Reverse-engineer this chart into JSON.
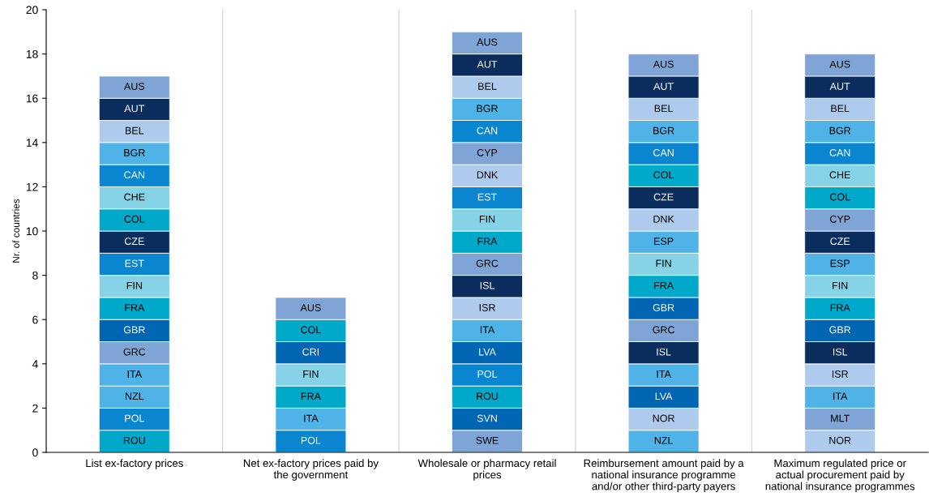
{
  "chart_data": {
    "type": "bar",
    "stacked": true,
    "ylabel": "Nr. of countries",
    "categories": [
      "List ex-factory prices",
      "Net ex-factory prices paid by the government",
      "Wholesale or pharmacy retail prices",
      "Reimbursement amount paid by a national insurance programme and/or other third-party payers",
      "Maximum regulated price or actual procurement paid by national insurance programmes"
    ],
    "ylim": [
      0,
      20
    ],
    "yticks": [
      0,
      2,
      4,
      6,
      8,
      10,
      12,
      14,
      16,
      18,
      20
    ],
    "grid": false,
    "series": [
      {
        "values": [
          1,
          1,
          1,
          1,
          1
        ],
        "value_labels": [
          "ROU",
          "POL",
          "SWE",
          "NZL",
          "NOR"
        ],
        "colors": [
          "#00a9c9",
          "#0a86d0",
          "#7fa5d6",
          "#4fb3e8",
          "#aecbee"
        ]
      },
      {
        "values": [
          1,
          1,
          1,
          1,
          1
        ],
        "value_labels": [
          "POL",
          "ITA",
          "SVN",
          "NOR",
          "MLT"
        ],
        "colors": [
          "#0a86d0",
          "#4fb3e8",
          "#0066b3",
          "#aecbee",
          "#7fa5d6"
        ]
      },
      {
        "values": [
          1,
          1,
          1,
          1,
          1
        ],
        "value_labels": [
          "NZL",
          "FRA",
          "ROU",
          "LVA",
          "ITA"
        ],
        "colors": [
          "#4fb3e8",
          "#00a9c9",
          "#00a9c9",
          "#0066b3",
          "#4fb3e8"
        ]
      },
      {
        "values": [
          1,
          1,
          1,
          1,
          1
        ],
        "value_labels": [
          "ITA",
          "FIN",
          "POL",
          "ITA",
          "ISR"
        ],
        "colors": [
          "#4fb3e8",
          "#86d2e6",
          "#0a86d0",
          "#4fb3e8",
          "#aecbee"
        ]
      },
      {
        "values": [
          1,
          1,
          1,
          1,
          1
        ],
        "value_labels": [
          "GRC",
          "CRI",
          "LVA",
          "ISL",
          "ISL"
        ],
        "colors": [
          "#7fa5d6",
          "#0066b3",
          "#0066b3",
          "#0b2d5e",
          "#0b2d5e"
        ]
      },
      {
        "values": [
          1,
          1,
          1,
          1,
          1
        ],
        "value_labels": [
          "GBR",
          "COL",
          "ITA",
          "GRC",
          "GBR"
        ],
        "colors": [
          "#0066b3",
          "#00a9c9",
          "#4fb3e8",
          "#7fa5d6",
          "#0066b3"
        ]
      },
      {
        "values": [
          1,
          1,
          1,
          1,
          1
        ],
        "value_labels": [
          "FRA",
          "AUS",
          "ISR",
          "GBR",
          "FRA"
        ],
        "colors": [
          "#00a9c9",
          "#7fa5d6",
          "#aecbee",
          "#0066b3",
          "#00a9c9"
        ]
      },
      {
        "values": [
          1,
          null,
          1,
          1,
          1
        ],
        "value_labels": [
          "FIN",
          null,
          "ISL",
          "FRA",
          "FIN"
        ],
        "colors": [
          "#86d2e6",
          null,
          "#0b2d5e",
          "#00a9c9",
          "#86d2e6"
        ]
      },
      {
        "values": [
          1,
          null,
          1,
          1,
          1
        ],
        "value_labels": [
          "EST",
          null,
          "GRC",
          "FIN",
          "ESP"
        ],
        "colors": [
          "#0a86d0",
          null,
          "#7fa5d6",
          "#86d2e6",
          "#4fb3e8"
        ]
      },
      {
        "values": [
          1,
          null,
          1,
          1,
          1
        ],
        "value_labels": [
          "CZE",
          null,
          "FRA",
          "ESP",
          "CZE"
        ],
        "colors": [
          "#0b2d5e",
          null,
          "#00a9c9",
          "#4fb3e8",
          "#0b2d5e"
        ]
      },
      {
        "values": [
          1,
          null,
          1,
          1,
          1
        ],
        "value_labels": [
          "COL",
          null,
          "FIN",
          "DNK",
          "CYP"
        ],
        "colors": [
          "#00a9c9",
          null,
          "#86d2e6",
          "#aecbee",
          "#7fa5d6"
        ]
      },
      {
        "values": [
          1,
          null,
          1,
          1,
          1
        ],
        "value_labels": [
          "CHE",
          null,
          "EST",
          "CZE",
          "COL"
        ],
        "colors": [
          "#86d2e6",
          null,
          "#0a86d0",
          "#0b2d5e",
          "#00a9c9"
        ]
      },
      {
        "values": [
          1,
          null,
          1,
          1,
          1
        ],
        "value_labels": [
          "CAN",
          null,
          "DNK",
          "COL",
          "CHE"
        ],
        "colors": [
          "#0a86d0",
          null,
          "#aecbee",
          "#00a9c9",
          "#86d2e6"
        ]
      },
      {
        "values": [
          1,
          null,
          1,
          1,
          1
        ],
        "value_labels": [
          "BGR",
          null,
          "CYP",
          "CAN",
          "CAN"
        ],
        "colors": [
          "#4fb3e8",
          null,
          "#7fa5d6",
          "#0a86d0",
          "#0a86d0"
        ]
      },
      {
        "values": [
          1,
          null,
          1,
          1,
          1
        ],
        "value_labels": [
          "BEL",
          null,
          "CAN",
          "BGR",
          "BGR"
        ],
        "colors": [
          "#aecbee",
          null,
          "#0a86d0",
          "#4fb3e8",
          "#4fb3e8"
        ]
      },
      {
        "values": [
          1,
          null,
          1,
          1,
          1
        ],
        "value_labels": [
          "AUT",
          null,
          "BGR",
          "BEL",
          "BEL"
        ],
        "colors": [
          "#0b2d5e",
          null,
          "#4fb3e8",
          "#aecbee",
          "#aecbee"
        ]
      },
      {
        "values": [
          1,
          null,
          1,
          1,
          1
        ],
        "value_labels": [
          "AUS",
          null,
          "BEL",
          "AUT",
          "AUT"
        ],
        "colors": [
          "#7fa5d6",
          null,
          "#aecbee",
          "#0b2d5e",
          "#0b2d5e"
        ]
      },
      {
        "values": [
          null,
          null,
          1,
          1,
          1
        ],
        "value_labels": [
          null,
          null,
          "AUT",
          "AUS",
          "AUS"
        ],
        "colors": [
          null,
          null,
          "#0b2d5e",
          "#7fa5d6",
          "#7fa5d6"
        ]
      },
      {
        "values": [
          null,
          null,
          1,
          null,
          null
        ],
        "value_labels": [
          null,
          null,
          "AUS",
          null,
          null
        ],
        "colors": [
          null,
          null,
          "#7fa5d6",
          null,
          null
        ]
      }
    ]
  }
}
